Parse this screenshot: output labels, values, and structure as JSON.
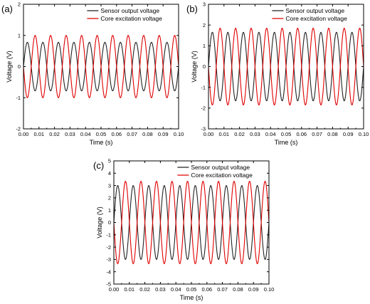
{
  "chart_data": [
    {
      "type": "line",
      "panel_label": "(a)",
      "xlabel": "Time (s)",
      "ylabel": "Voltage (V)",
      "xlim": [
        0,
        0.1
      ],
      "ylim": [
        -2,
        2
      ],
      "x_ticks": [
        "0.00",
        "0.01",
        "0.02",
        "0.03",
        "0.04",
        "0.05",
        "0.06",
        "0.07",
        "0.08",
        "0.09",
        "0.10"
      ],
      "y_ticks": [
        "-2",
        "-1",
        "0",
        "1",
        "2"
      ],
      "y_tick_values": [
        -2,
        -1,
        0,
        1,
        2
      ],
      "legend_position": "top-right",
      "series": [
        {
          "name": "Sensor output voltage",
          "color": "#222222",
          "waveform": "sine",
          "frequency_hz": 100,
          "amplitude_v": 0.78,
          "phase_deg": 0
        },
        {
          "name": "Core excitation voltage",
          "color": "#e00000",
          "waveform": "sine",
          "frequency_hz": 100,
          "amplitude_v": 1.0,
          "phase_deg": 180
        }
      ]
    },
    {
      "type": "line",
      "panel_label": "(b)",
      "xlabel": "Time (s)",
      "ylabel": "Voltage (V)",
      "xlim": [
        0,
        0.1
      ],
      "ylim": [
        -3,
        3
      ],
      "x_ticks": [
        "0.00",
        "0.01",
        "0.02",
        "0.03",
        "0.04",
        "0.05",
        "0.06",
        "0.07",
        "0.08",
        "0.09",
        "0.10"
      ],
      "y_ticks": [
        "-3",
        "-2",
        "-1",
        "0",
        "1",
        "2",
        "3"
      ],
      "y_tick_values": [
        -3,
        -2,
        -1,
        0,
        1,
        2,
        3
      ],
      "legend_position": "top-right",
      "series": [
        {
          "name": "Sensor output voltage",
          "color": "#222222",
          "waveform": "sine",
          "frequency_hz": 100,
          "amplitude_v": 1.65,
          "phase_deg": 0
        },
        {
          "name": "Core excitation voltage",
          "color": "#e00000",
          "waveform": "sine",
          "frequency_hz": 100,
          "amplitude_v": 1.85,
          "phase_deg": 180
        }
      ]
    },
    {
      "type": "line",
      "panel_label": "(c)",
      "xlabel": "Time (s)",
      "ylabel": "Voltage (V)",
      "xlim": [
        0,
        0.1
      ],
      "ylim": [
        -5,
        5
      ],
      "x_ticks": [
        "0.00",
        "0.01",
        "0.02",
        "0.03",
        "0.04",
        "0.05",
        "0.06",
        "0.07",
        "0.08",
        "0.09",
        "0.10"
      ],
      "y_ticks": [
        "-5",
        "-4",
        "-3",
        "-2",
        "-1",
        "0",
        "1",
        "2",
        "3",
        "4",
        "5"
      ],
      "y_tick_values": [
        -5,
        -4,
        -3,
        -2,
        -1,
        0,
        1,
        2,
        3,
        4,
        5
      ],
      "legend_position": "top-right",
      "series": [
        {
          "name": "Sensor output voltage",
          "color": "#222222",
          "waveform": "sine",
          "frequency_hz": 100,
          "amplitude_v": 3.0,
          "phase_deg": 0
        },
        {
          "name": "Core excitation voltage",
          "color": "#e00000",
          "waveform": "sine",
          "frequency_hz": 100,
          "amplitude_v": 3.35,
          "phase_deg": 180
        }
      ]
    }
  ]
}
